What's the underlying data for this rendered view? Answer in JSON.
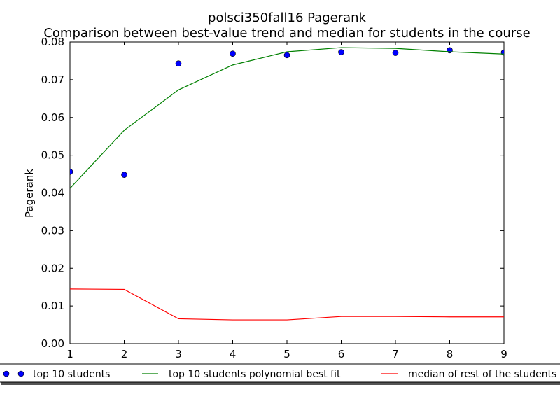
{
  "chart_data": {
    "type": "line",
    "title": "polsci350fall16 Pagerank",
    "subtitle": "Comparison between best-value trend and median for students in the course",
    "xlabel": "",
    "ylabel": "Pagerank",
    "xlim": [
      1,
      9
    ],
    "ylim": [
      0.0,
      0.08
    ],
    "xticks": [
      "1",
      "2",
      "3",
      "4",
      "5",
      "6",
      "7",
      "8",
      "9"
    ],
    "yticks": [
      "0.00",
      "0.01",
      "0.02",
      "0.03",
      "0.04",
      "0.05",
      "0.06",
      "0.07",
      "0.08"
    ],
    "grid": false,
    "legend_position": "bottom",
    "series": [
      {
        "name": "top 10 students",
        "kind": "scatter",
        "color": "#0000ff",
        "x": [
          1,
          2,
          3,
          4,
          5,
          6,
          7,
          8,
          9
        ],
        "y": [
          0.0456,
          0.0448,
          0.0743,
          0.0769,
          0.0765,
          0.0773,
          0.0771,
          0.0778,
          0.0772
        ]
      },
      {
        "name": "top 10 students polynomial best fit",
        "kind": "line",
        "color": "#008000",
        "x": [
          1,
          2,
          3,
          4,
          5,
          6,
          7,
          8,
          9
        ],
        "y": [
          0.0412,
          0.0566,
          0.0673,
          0.0739,
          0.0774,
          0.0785,
          0.0783,
          0.0774,
          0.0768
        ]
      },
      {
        "name": "median of rest of the students",
        "kind": "line",
        "color": "#ff0000",
        "x": [
          1,
          2,
          3,
          4,
          5,
          6,
          7,
          8,
          9
        ],
        "y": [
          0.0145,
          0.0144,
          0.0066,
          0.0063,
          0.0063,
          0.0072,
          0.0072,
          0.0071,
          0.0071
        ]
      }
    ]
  }
}
